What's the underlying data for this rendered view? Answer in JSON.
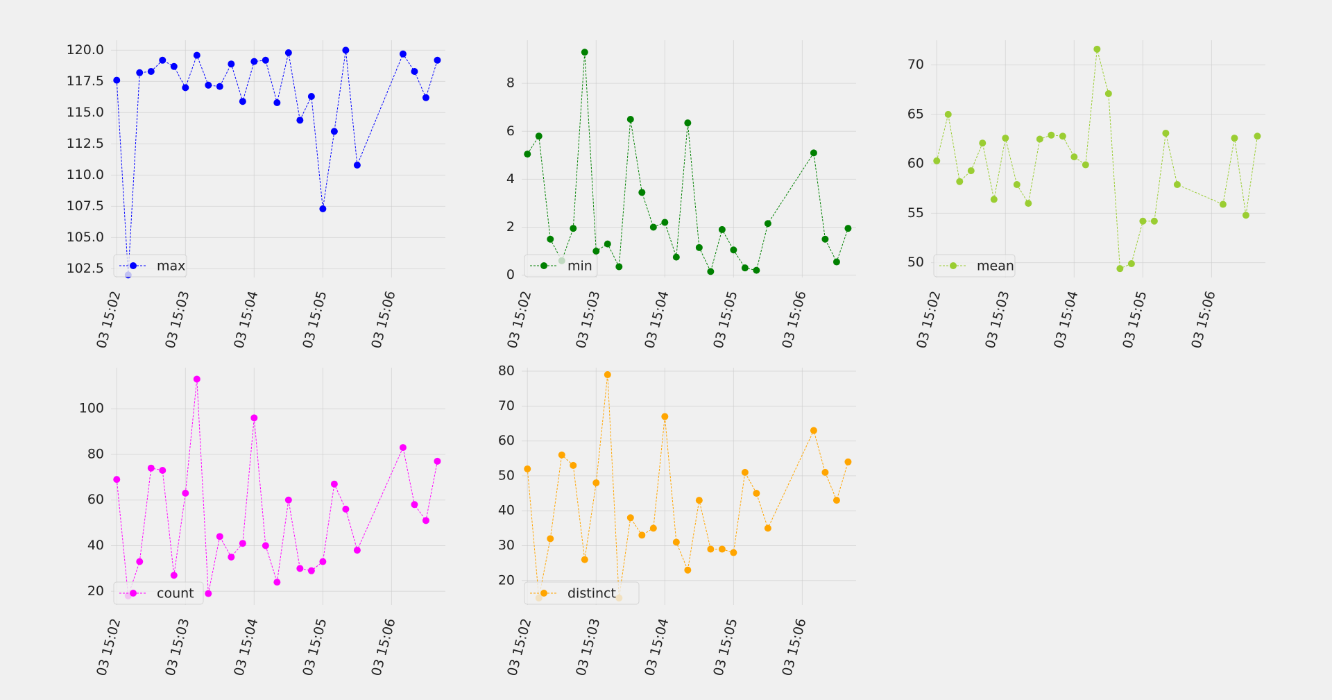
{
  "chart_data": [
    {
      "type": "line",
      "series": [
        {
          "name": "max",
          "color": "#0000ff"
        }
      ],
      "x": [
        "15:02:00",
        "15:02:10",
        "15:02:20",
        "15:02:30",
        "15:02:40",
        "15:02:50",
        "15:03:00",
        "15:03:10",
        "15:03:20",
        "15:03:30",
        "15:03:40",
        "15:03:50",
        "15:04:00",
        "15:04:10",
        "15:04:20",
        "15:04:30",
        "15:04:40",
        "15:04:50",
        "15:05:00",
        "15:05:10",
        "15:05:20",
        "15:05:30",
        "15:06:10",
        "15:06:20",
        "15:06:30",
        "15:06:40"
      ],
      "values": [
        117.6,
        102.0,
        118.2,
        118.3,
        119.2,
        118.7,
        117.0,
        119.6,
        117.2,
        117.1,
        118.9,
        115.9,
        119.1,
        119.2,
        115.8,
        119.8,
        114.4,
        116.3,
        107.3,
        113.5,
        120.0,
        110.8,
        119.7,
        118.3,
        116.2,
        119.2
      ],
      "ylim": [
        101.8,
        120.8
      ],
      "yticks": [
        "102.5",
        "105.0",
        "107.5",
        "110.0",
        "112.5",
        "115.0",
        "117.5",
        "120.0"
      ],
      "xticks": [
        "03 15:02",
        "03 15:03",
        "03 15:04",
        "03 15:05",
        "03 15:06"
      ],
      "legend": "max",
      "legend_position": "lower-left",
      "grid": true
    },
    {
      "type": "line",
      "series": [
        {
          "name": "min",
          "color": "#008000"
        }
      ],
      "x": [
        "15:02:00",
        "15:02:10",
        "15:02:20",
        "15:02:30",
        "15:02:40",
        "15:02:50",
        "15:03:00",
        "15:03:10",
        "15:03:20",
        "15:03:30",
        "15:03:40",
        "15:03:50",
        "15:04:00",
        "15:04:10",
        "15:04:20",
        "15:04:30",
        "15:04:40",
        "15:04:50",
        "15:05:00",
        "15:05:10",
        "15:05:20",
        "15:05:30",
        "15:06:10",
        "15:06:20",
        "15:06:30",
        "15:06:40"
      ],
      "values": [
        5.05,
        5.8,
        1.5,
        0.6,
        1.95,
        9.3,
        1.0,
        1.3,
        0.35,
        6.5,
        3.45,
        2.0,
        2.2,
        0.75,
        6.35,
        1.15,
        0.15,
        1.9,
        1.05,
        0.3,
        0.2,
        2.15,
        5.1,
        1.5,
        0.55,
        1.95
      ],
      "ylim": [
        -0.1,
        9.8
      ],
      "yticks": [
        "0",
        "2",
        "4",
        "6",
        "8"
      ],
      "xticks": [
        "03 15:02",
        "03 15:03",
        "03 15:04",
        "03 15:05",
        "03 15:06"
      ],
      "legend": "min",
      "legend_position": "lower-left",
      "grid": true
    },
    {
      "type": "line",
      "series": [
        {
          "name": "mean",
          "color": "#9acd32"
        }
      ],
      "x": [
        "15:02:00",
        "15:02:10",
        "15:02:20",
        "15:02:30",
        "15:02:40",
        "15:02:50",
        "15:03:00",
        "15:03:10",
        "15:03:20",
        "15:03:30",
        "15:03:40",
        "15:03:50",
        "15:04:00",
        "15:04:10",
        "15:04:20",
        "15:04:30",
        "15:04:40",
        "15:04:50",
        "15:05:00",
        "15:05:10",
        "15:05:20",
        "15:05:30",
        "15:06:10",
        "15:06:20",
        "15:06:30",
        "15:06:40"
      ],
      "values": [
        60.3,
        65.0,
        58.2,
        59.3,
        62.1,
        56.4,
        62.6,
        57.9,
        56.0,
        62.5,
        62.9,
        62.8,
        60.7,
        59.9,
        71.6,
        67.1,
        49.4,
        49.9,
        54.2,
        54.2,
        63.1,
        57.9,
        55.9,
        62.6,
        54.8,
        62.8
      ],
      "ylim": [
        48.5,
        72.5
      ],
      "yticks": [
        "50",
        "55",
        "60",
        "65",
        "70"
      ],
      "xticks": [
        "03 15:02",
        "03 15:03",
        "03 15:04",
        "03 15:05",
        "03 15:06"
      ],
      "legend": "mean",
      "legend_position": "lower-left",
      "grid": true
    },
    {
      "type": "line",
      "series": [
        {
          "name": "count",
          "color": "#ff00ff"
        }
      ],
      "x": [
        "15:02:00",
        "15:02:10",
        "15:02:20",
        "15:02:30",
        "15:02:40",
        "15:02:50",
        "15:03:00",
        "15:03:10",
        "15:03:20",
        "15:03:30",
        "15:03:40",
        "15:03:50",
        "15:04:00",
        "15:04:10",
        "15:04:20",
        "15:04:30",
        "15:04:40",
        "15:04:50",
        "15:05:00",
        "15:05:10",
        "15:05:20",
        "15:05:30",
        "15:06:10",
        "15:06:20",
        "15:06:30",
        "15:06:40"
      ],
      "values": [
        69,
        18,
        33,
        74,
        73,
        27,
        63,
        113,
        19,
        44,
        35,
        41,
        96,
        40,
        24,
        60,
        30,
        29,
        33,
        67,
        56,
        38,
        83,
        58,
        51,
        77
      ],
      "ylim": [
        14,
        118
      ],
      "yticks": [
        "20",
        "40",
        "60",
        "80",
        "100"
      ],
      "xticks": [
        "03 15:02",
        "03 15:03",
        "03 15:04",
        "03 15:05",
        "03 15:06"
      ],
      "legend": "count",
      "legend_position": "lower-left",
      "grid": true
    },
    {
      "type": "line",
      "series": [
        {
          "name": "distinct",
          "color": "#ffa500"
        }
      ],
      "x": [
        "15:02:00",
        "15:02:10",
        "15:02:20",
        "15:02:30",
        "15:02:40",
        "15:02:50",
        "15:03:00",
        "15:03:10",
        "15:03:20",
        "15:03:30",
        "15:03:40",
        "15:03:50",
        "15:04:00",
        "15:04:10",
        "15:04:20",
        "15:04:30",
        "15:04:40",
        "15:04:50",
        "15:05:00",
        "15:05:10",
        "15:05:20",
        "15:05:30",
        "15:06:10",
        "15:06:20",
        "15:06:30",
        "15:06:40"
      ],
      "values": [
        52,
        15,
        32,
        56,
        53,
        26,
        48,
        79,
        15,
        38,
        33,
        35,
        67,
        31,
        23,
        43,
        29,
        29,
        28,
        51,
        45,
        35,
        63,
        51,
        43,
        54
      ],
      "ylim": [
        13,
        81
      ],
      "yticks": [
        "20",
        "30",
        "40",
        "50",
        "60",
        "70",
        "80"
      ],
      "xticks": [
        "03 15:02",
        "03 15:03",
        "03 15:04",
        "03 15:05",
        "03 15:06"
      ],
      "legend": "distinct",
      "legend_position": "lower-left",
      "grid": true
    }
  ]
}
